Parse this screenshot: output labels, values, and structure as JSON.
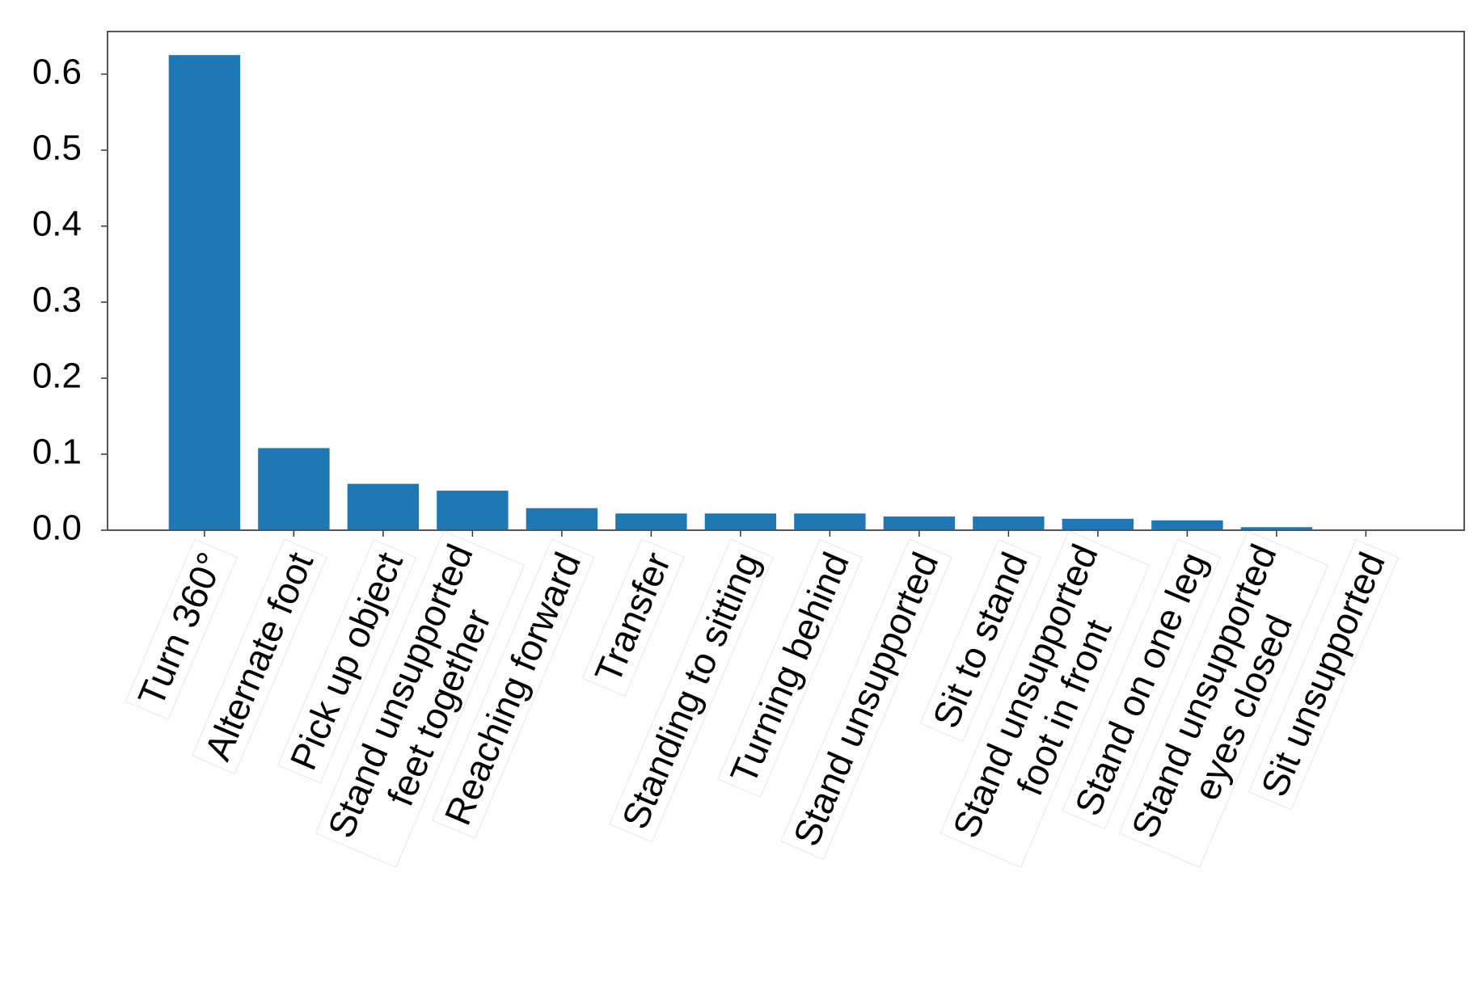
{
  "chart_data": {
    "type": "bar",
    "categories": [
      "Turn 360°",
      "Alternate foot",
      "Pick up object",
      "Stand unsupported\nfeet together",
      "Reaching forward",
      "Transfer",
      "Standing to sitting",
      "Turning behind",
      "Stand unsupported",
      "Sit to stand",
      "Stand unsupported\nfoot in front",
      "Stand on one leg",
      "Stand unsupported\neyes closed",
      "Sit unsupported"
    ],
    "values": [
      0.625,
      0.108,
      0.061,
      0.052,
      0.029,
      0.022,
      0.022,
      0.022,
      0.018,
      0.018,
      0.015,
      0.013,
      0.004,
      0.0
    ],
    "color": "#1f77b4",
    "ylim": [
      0,
      0.656
    ],
    "yticks": [
      {
        "value": 0,
        "label": "0.0"
      },
      0.1,
      0.2,
      0.3,
      0.4,
      0.5,
      0.6
    ]
  }
}
